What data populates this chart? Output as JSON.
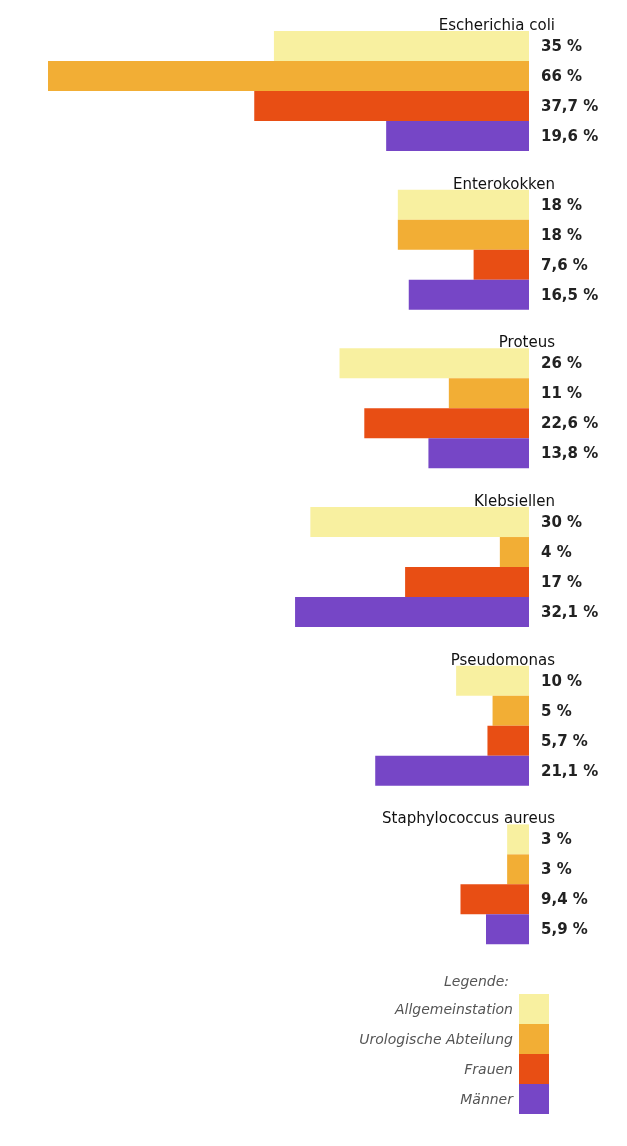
{
  "chart_data": {
    "type": "bar",
    "orientation": "horizontal",
    "legend_title": "Legende:",
    "legend": "bottom right",
    "tick_labels": "y",
    "categories": [
      "Escherichia coli",
      "Enterokokken",
      "Proteus",
      "Klebsiellen",
      "Pseudomonas",
      "Staphylococcus aureus"
    ],
    "series": [
      {
        "name": "Allgemeinstation",
        "color": "#f8f0a0",
        "values": [
          35,
          18,
          26,
          30,
          10,
          3
        ],
        "value_labels": [
          "35 %",
          "18 %",
          "26 %",
          "30 %",
          "10 %",
          "3 %"
        ]
      },
      {
        "name": "Urologische Abteilung",
        "color": "#f2ae35",
        "values": [
          66,
          18,
          11,
          4,
          5,
          3
        ],
        "value_labels": [
          "66 %",
          "18 %",
          "11 %",
          "4 %",
          "5 %",
          "3 %"
        ]
      },
      {
        "name": "Frauen",
        "color": "#e84e14",
        "values": [
          37.7,
          7.6,
          22.6,
          17,
          5.7,
          9.4
        ],
        "value_labels": [
          "37,7 %",
          "7,6 %",
          "22,6 %",
          "17 %",
          "5,7 %",
          "9,4 %"
        ]
      },
      {
        "name": "Männer",
        "color": "#7646c6",
        "values": [
          19.6,
          16.5,
          13.8,
          32.1,
          21.1,
          5.9
        ],
        "value_labels": [
          "19,6 %",
          "16,5 %",
          "13,8 %",
          "32,1 %",
          "21,1 %",
          "5,9 %"
        ]
      }
    ]
  }
}
